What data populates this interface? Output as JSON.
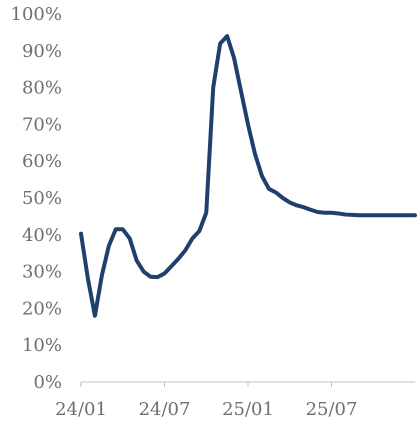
{
  "chart_data": {
    "type": "line",
    "title": "",
    "xlabel": "",
    "ylabel": "",
    "ylim": [
      0,
      100
    ],
    "ytick_values": [
      0,
      10,
      20,
      30,
      40,
      50,
      60,
      70,
      80,
      90,
      100
    ],
    "ytick_labels": [
      "0%",
      "10%",
      "20%",
      "30%",
      "40%",
      "50%",
      "60%",
      "70%",
      "80%",
      "90%",
      "100%"
    ],
    "xtick_labels": [
      "24/01",
      "24/07",
      "25/01",
      "25/07"
    ],
    "xtick_x": [
      0,
      6,
      12,
      18
    ],
    "xlim": [
      0,
      24
    ],
    "grid": false,
    "legend": "none",
    "colors": {
      "series": "#1f3f6d",
      "axis": "#d7d7d7",
      "tick_text": "#6f6f6f"
    },
    "series": [
      {
        "x": [
          0,
          0.5,
          1,
          1.5,
          2,
          2.5,
          3,
          3.5,
          4,
          4.5,
          5,
          5.5,
          6,
          6.5,
          7,
          7.5,
          8,
          8.5,
          9,
          9.5,
          10,
          10.5,
          11,
          11.5,
          12,
          12.5,
          13,
          13.5,
          14,
          14.5,
          15,
          15.5,
          16,
          16.5,
          17,
          17.5,
          18,
          18.5,
          19,
          19.5,
          20,
          20.5,
          21,
          21.5,
          22,
          22.5,
          23,
          23.5,
          24
        ],
        "values": [
          40.3,
          28,
          18,
          29,
          37,
          41.5,
          41.5,
          39,
          33,
          30,
          28.6,
          28.5,
          29.5,
          31.5,
          33.5,
          35.8,
          39,
          41,
          46,
          80,
          92,
          94,
          88,
          79,
          70,
          62,
          56,
          52.5,
          51.5,
          50,
          48.8,
          48,
          47.5,
          46.8,
          46.2,
          46,
          46,
          45.8,
          45.5,
          45.4,
          45.3,
          45.3,
          45.3,
          45.3,
          45.3,
          45.3,
          45.3,
          45.3,
          45.3
        ]
      }
    ]
  }
}
